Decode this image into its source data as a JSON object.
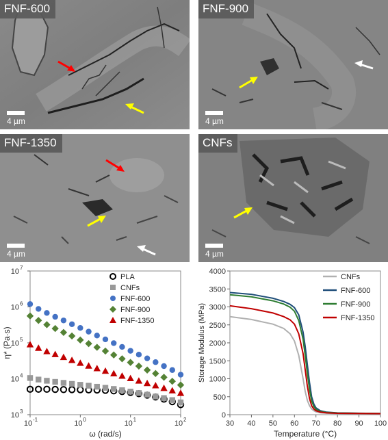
{
  "sem_panels": [
    {
      "label": "FNF-600",
      "scale": "4 µm"
    },
    {
      "label": "FNF-900",
      "scale": "4 µm"
    },
    {
      "label": "FNF-1350",
      "scale": "4 µm"
    },
    {
      "label": "CNFs",
      "scale": "4 µm"
    }
  ],
  "chart_data": [
    {
      "type": "scatter",
      "xlabel": "ω (rad/s)",
      "ylabel": "η* (Pa·s)",
      "xscale": "log",
      "yscale": "log",
      "xlim": [
        0.1,
        100
      ],
      "ylim": [
        1000,
        10000000
      ],
      "x_ticks": [
        "10",
        "10",
        "10",
        "10"
      ],
      "x_tick_exp": [
        "-1",
        "0",
        "1",
        "2"
      ],
      "y_ticks": [
        "10",
        "10",
        "10",
        "10",
        "10"
      ],
      "y_tick_exp": [
        "3",
        "4",
        "5",
        "6",
        "7"
      ],
      "legend_position": "top-right",
      "x": [
        0.1,
        0.1468,
        0.2154,
        0.3162,
        0.4642,
        0.6813,
        1.0,
        1.468,
        2.154,
        3.162,
        4.642,
        6.813,
        10.0,
        14.68,
        21.54,
        31.62,
        46.42,
        68.13,
        100.0
      ],
      "series": [
        {
          "name": "PLA",
          "color": "#000000",
          "marker": "circle-open",
          "values": [
            5100,
            5100,
            5100,
            5050,
            5000,
            4980,
            4950,
            4900,
            4850,
            4750,
            4600,
            4400,
            4150,
            3850,
            3500,
            3100,
            2700,
            2300,
            1900
          ]
        },
        {
          "name": "CNFs",
          "color": "#999999",
          "marker": "square",
          "values": [
            10500,
            9500,
            8800,
            8200,
            7700,
            7200,
            6800,
            6400,
            6000,
            5600,
            5200,
            4800,
            4400,
            4000,
            3600,
            3200,
            2900,
            2550,
            2200
          ]
        },
        {
          "name": "FNF-600",
          "color": "#4472c4",
          "marker": "circle",
          "values": [
            1200000,
            880000,
            680000,
            530000,
            420000,
            330000,
            260000,
            205000,
            160000,
            125000,
            98000,
            77000,
            60000,
            47000,
            37000,
            29000,
            22500,
            17500,
            13000
          ]
        },
        {
          "name": "FNF-900",
          "color": "#548235",
          "marker": "diamond",
          "values": [
            560000,
            420000,
            320000,
            250000,
            195000,
            155000,
            120000,
            95000,
            75000,
            59000,
            46000,
            36000,
            28500,
            22500,
            17500,
            14000,
            11000,
            8500,
            6700
          ]
        },
        {
          "name": "FNF-1350",
          "color": "#c00000",
          "marker": "triangle",
          "values": [
            90000,
            72000,
            58000,
            48000,
            40000,
            33000,
            27500,
            23000,
            19500,
            16500,
            14000,
            12000,
            10300,
            8800,
            7500,
            6500,
            5500,
            4700,
            4000
          ]
        }
      ]
    },
    {
      "type": "line",
      "xlabel": "Temperature (°C)",
      "ylabel": "Storage Modulus (MPa)",
      "xlim": [
        30,
        100
      ],
      "ylim": [
        0,
        4000
      ],
      "x_ticks": [
        "30",
        "40",
        "50",
        "60",
        "70",
        "80",
        "90",
        "100"
      ],
      "y_ticks": [
        "0",
        "500",
        "1000",
        "1500",
        "2000",
        "2500",
        "3000",
        "3500",
        "4000"
      ],
      "legend_position": "top-right",
      "x": [
        30,
        40,
        50,
        55,
        58,
        60,
        62,
        64,
        65,
        66,
        67,
        68,
        69,
        70,
        72,
        75,
        80,
        90,
        100
      ],
      "series": [
        {
          "name": "CNFs",
          "color": "#b0b0b0",
          "values": [
            2730,
            2650,
            2520,
            2400,
            2250,
            2050,
            1650,
            1000,
            650,
            400,
            250,
            160,
            110,
            80,
            55,
            40,
            30,
            25,
            22
          ]
        },
        {
          "name": "FNF-600",
          "color": "#1f4e79",
          "values": [
            3400,
            3350,
            3240,
            3150,
            3070,
            2980,
            2780,
            2300,
            1900,
            1400,
            900,
            500,
            300,
            190,
            110,
            70,
            50,
            40,
            35
          ]
        },
        {
          "name": "FNF-900",
          "color": "#2e7d32",
          "values": [
            3340,
            3280,
            3170,
            3080,
            2990,
            2880,
            2620,
            2100,
            1650,
            1150,
            700,
            380,
            230,
            150,
            90,
            60,
            45,
            38,
            33
          ]
        },
        {
          "name": "FNF-1350",
          "color": "#c00000",
          "values": [
            3030,
            2950,
            2830,
            2730,
            2640,
            2520,
            2250,
            1700,
            1250,
            800,
            450,
            250,
            160,
            110,
            70,
            50,
            38,
            32,
            28
          ]
        }
      ]
    }
  ]
}
